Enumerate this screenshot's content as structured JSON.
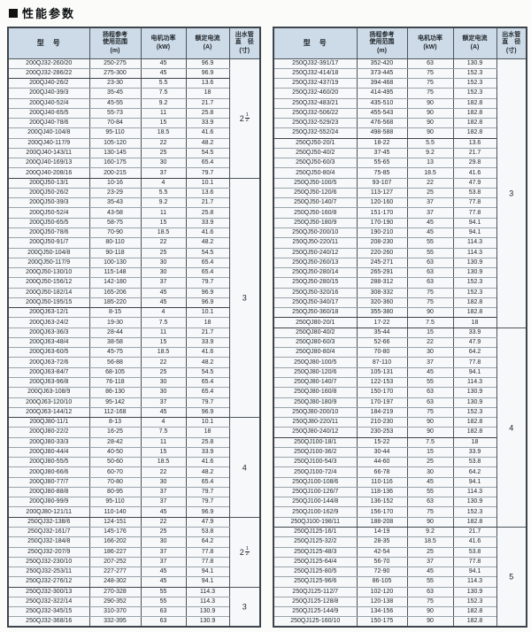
{
  "page": {
    "bullet": "■",
    "title": "性能参数"
  },
  "columns": {
    "model": "型　号",
    "head_l1": "扬程参考",
    "head_l2": "使用范围",
    "head_l3": "(m)",
    "power_l1": "电机功率",
    "power_l2": "(kW)",
    "current_l1": "额定电流",
    "current_l2": "(A)",
    "outlet_l1": "出水管",
    "outlet_l2": "直　径",
    "outlet_l3": "(寸)"
  },
  "left_table": {
    "rows": [
      [
        "200QJ32-260/20",
        "250-275",
        "45",
        "96.9"
      ],
      [
        "200QJ32-286/22",
        "275-300",
        "45",
        "96.9"
      ],
      [
        "200QJ40-26/2",
        "23-30",
        "5.5",
        "13.6"
      ],
      [
        "200QJ40-39/3",
        "35-45",
        "7.5",
        "18"
      ],
      [
        "200QJ40-52/4",
        "45-55",
        "9.2",
        "21.7"
      ],
      [
        "200QJ40-65/5",
        "55-73",
        "11",
        "25.8"
      ],
      [
        "200QJ40-78/6",
        "70-84",
        "15",
        "33.9"
      ],
      [
        "200QJ40-104/8",
        "95-110",
        "18.5",
        "41.6"
      ],
      [
        "200QJ40-117/9",
        "105-120",
        "22",
        "48.2"
      ],
      [
        "200QJ40-143/11",
        "130-145",
        "25",
        "54.5"
      ],
      [
        "200QJ40-169/13",
        "160-175",
        "30",
        "65.4"
      ],
      [
        "200QJ40-208/16",
        "200-215",
        "37",
        "79.7"
      ],
      [
        "200QJ50-13/1",
        "10-16",
        "4",
        "10.1"
      ],
      [
        "200QJ50-26/2",
        "23-29",
        "5.5",
        "13.6"
      ],
      [
        "200QJ50-39/3",
        "35-43",
        "9.2",
        "21.7"
      ],
      [
        "200QJ50-52/4",
        "43-58",
        "11",
        "25.8"
      ],
      [
        "200QJ50-65/5",
        "58-75",
        "15",
        "33.9"
      ],
      [
        "200QJ50-78/6",
        "70-90",
        "18.5",
        "41.6"
      ],
      [
        "200QJ50-91/7",
        "80-110",
        "22",
        "48.2"
      ],
      [
        "200QJ50-104/8",
        "90-118",
        "25",
        "54.5"
      ],
      [
        "200QJ50-117/9",
        "100-130",
        "30",
        "65.4"
      ],
      [
        "200QJ50-130/10",
        "115-148",
        "30",
        "65.4"
      ],
      [
        "200QJ50-156/12",
        "142-180",
        "37",
        "79.7"
      ],
      [
        "200QJ50-182/14",
        "165-206",
        "45",
        "96.9"
      ],
      [
        "200QJ50-195/15",
        "185-220",
        "45",
        "96.9"
      ],
      [
        "200QJ63-12/1",
        "8-15",
        "4",
        "10.1"
      ],
      [
        "200QJ63-24/2",
        "19-30",
        "7.5",
        "18"
      ],
      [
        "200QJ63-36/3",
        "28-44",
        "11",
        "21.7"
      ],
      [
        "200QJ63-48/4",
        "38-58",
        "15",
        "33.9"
      ],
      [
        "200QJ63-60/5",
        "45-75",
        "18.5",
        "41.6"
      ],
      [
        "200QJ63-72/6",
        "56-88",
        "22",
        "48.2"
      ],
      [
        "200QJ63-84/7",
        "68-105",
        "25",
        "54.5"
      ],
      [
        "200QJ63-96/8",
        "76-118",
        "30",
        "65.4"
      ],
      [
        "200QJ63-108/9",
        "86-130",
        "30",
        "65.4"
      ],
      [
        "200QJ63-120/10",
        "95-142",
        "37",
        "79.7"
      ],
      [
        "200QJ63-144/12",
        "112-168",
        "45",
        "96.9"
      ],
      [
        "200QJ80-11/1",
        "8-13",
        "4",
        "10.1"
      ],
      [
        "200QJ80-22/2",
        "16-25",
        "7.5",
        "18"
      ],
      [
        "200QJ80-33/3",
        "28-42",
        "11",
        "25.8"
      ],
      [
        "200QJ80-44/4",
        "40-50",
        "15",
        "33.9"
      ],
      [
        "200QJ80-55/5",
        "50-60",
        "18.5",
        "41.6"
      ],
      [
        "200QJ80-66/6",
        "60-70",
        "22",
        "48.2"
      ],
      [
        "200QJ80-77/7",
        "70-80",
        "30",
        "65.4"
      ],
      [
        "200QJ80-88/8",
        "80-95",
        "37",
        "79.7"
      ],
      [
        "200QJ80-99/9",
        "95-110",
        "37",
        "79.7"
      ],
      [
        "200QJ80-121/11",
        "110-140",
        "45",
        "96.9"
      ],
      [
        "250QJ32-138/6",
        "124-151",
        "22",
        "47.9"
      ],
      [
        "250QJ32-161/7",
        "145-176",
        "25",
        "53.8"
      ],
      [
        "250QJ32-184/8",
        "166-202",
        "30",
        "64.2"
      ],
      [
        "250QJ32-207/9",
        "186-227",
        "37",
        "77.8"
      ],
      [
        "250QJ32-230/10",
        "207-252",
        "37",
        "77.8"
      ],
      [
        "250QJ32-253/11",
        "227-277",
        "45",
        "94.1"
      ],
      [
        "250QJ32-276/12",
        "248-302",
        "45",
        "94.1"
      ],
      [
        "250QJ32-300/13",
        "270-328",
        "55",
        "114.3"
      ],
      [
        "250QJ32-322/14",
        "290-352",
        "55",
        "114.3"
      ],
      [
        "250QJ32-345/15",
        "310-370",
        "63",
        "130.9"
      ],
      [
        "250QJ32-368/16",
        "332-395",
        "63",
        "130.9"
      ]
    ],
    "diameter_groups": [
      {
        "rows": 12,
        "value": "2",
        "fraction": {
          "num": "1",
          "den": "2"
        }
      },
      {
        "rows": 24,
        "value": "3"
      },
      {
        "rows": 10,
        "value": "4"
      },
      {
        "rows": 7,
        "value": "2",
        "fraction": {
          "num": "1",
          "den": "2"
        }
      },
      {
        "rows": 4,
        "value": "3"
      }
    ],
    "thick_after": [
      1,
      11,
      24,
      35,
      45,
      52
    ]
  },
  "right_table": {
    "rows": [
      [
        "250QJ32-391/17",
        "352-420",
        "63",
        "130.9"
      ],
      [
        "250QJ32-414/18",
        "373-445",
        "75",
        "152.3"
      ],
      [
        "250QJ32-437/19",
        "394-468",
        "75",
        "152.3"
      ],
      [
        "250QJ32-460/20",
        "414-495",
        "75",
        "152.3"
      ],
      [
        "250QJ32-483/21",
        "435-510",
        "90",
        "182.8"
      ],
      [
        "250QJ32-506/22",
        "455-543",
        "90",
        "182.8"
      ],
      [
        "250QJ32-529/23",
        "476-568",
        "90",
        "182.8"
      ],
      [
        "250QJ32-552/24",
        "498-588",
        "90",
        "182.8"
      ],
      [
        "250QJ50-20/1",
        "18-22",
        "5.5",
        "13.6"
      ],
      [
        "250QJ50-40/2",
        "37-45",
        "9.2",
        "21.7"
      ],
      [
        "250QJ50-60/3",
        "55-65",
        "13",
        "29.8"
      ],
      [
        "250QJ50-80/4",
        "75-85",
        "18.5",
        "41.6"
      ],
      [
        "250QJ50-100/5",
        "93-107",
        "22",
        "47.9"
      ],
      [
        "250QJ50-120/6",
        "113-127",
        "25",
        "53.8"
      ],
      [
        "250QJ50-140/7",
        "120-160",
        "37",
        "77.8"
      ],
      [
        "250QJ50-160/8",
        "151-170",
        "37",
        "77.8"
      ],
      [
        "250QJ50-180/9",
        "170-190",
        "45",
        "94.1"
      ],
      [
        "250QJ50-200/10",
        "190-210",
        "45",
        "94.1"
      ],
      [
        "250QJ50-220/11",
        "208-230",
        "55",
        "114.3"
      ],
      [
        "250QJ50-240/12",
        "220-260",
        "55",
        "114.3"
      ],
      [
        "250QJ50-260/13",
        "245-271",
        "63",
        "130.9"
      ],
      [
        "250QJ50-280/14",
        "265-291",
        "63",
        "130.9"
      ],
      [
        "250QJ50-280/15",
        "288-312",
        "63",
        "152.3"
      ],
      [
        "250QJ50-320/16",
        "308-332",
        "75",
        "152.3"
      ],
      [
        "250QJ50-340/17",
        "320-360",
        "75",
        "182.8"
      ],
      [
        "250QJ50-360/18",
        "355-380",
        "90",
        "182.8"
      ],
      [
        "250QJ80-20/1",
        "17-22",
        "7.5",
        "18"
      ],
      [
        "250QJ80-40/2",
        "35-44",
        "15",
        "33.9"
      ],
      [
        "250QJ80-60/3",
        "52-66",
        "22",
        "47.9"
      ],
      [
        "250QJ80-80/4",
        "70-80",
        "30",
        "64.2"
      ],
      [
        "250QJ80-100/5",
        "87-110",
        "37",
        "77.8"
      ],
      [
        "250QJ80-120/6",
        "105-131",
        "45",
        "94.1"
      ],
      [
        "250QJ80-140/7",
        "122-153",
        "55",
        "114.3"
      ],
      [
        "250QJ80-160/8",
        "150-170",
        "63",
        "130.9"
      ],
      [
        "250QJ80-180/9",
        "170-197",
        "63",
        "130.9"
      ],
      [
        "250QJ80-200/10",
        "184-219",
        "75",
        "152.3"
      ],
      [
        "250QJ80-220/11",
        "210-230",
        "90",
        "182.8"
      ],
      [
        "250QJ80-240/12",
        "230-253",
        "90",
        "182.8"
      ],
      [
        "250QJ100-18/1",
        "15-22",
        "7.5",
        "18"
      ],
      [
        "250QJ100-36/2",
        "30-44",
        "15",
        "33.9"
      ],
      [
        "250QJ100-54/3",
        "44-60",
        "25",
        "53.8"
      ],
      [
        "250QJ100-72/4",
        "66-78",
        "30",
        "64.2"
      ],
      [
        "250QJ100-108/6",
        "110-116",
        "45",
        "94.1"
      ],
      [
        "250QJ100-126/7",
        "118-136",
        "55",
        "114.3"
      ],
      [
        "250QJ100-144/8",
        "136-152",
        "63",
        "130.9"
      ],
      [
        "250QJ100-162/9",
        "156-170",
        "75",
        "152.3"
      ],
      [
        "250QJ100-198/11",
        "188-208",
        "90",
        "182.8"
      ],
      [
        "250QJ125-16/1",
        "14-19",
        "9.2",
        "21.7"
      ],
      [
        "250QJ125-32/2",
        "28-35",
        "18.5",
        "41.6"
      ],
      [
        "250QJ125-48/3",
        "42-54",
        "25",
        "53.8"
      ],
      [
        "250QJ125-64/4",
        "56-70",
        "37",
        "77.8"
      ],
      [
        "250QJ125-80/5",
        "72-90",
        "45",
        "94.1"
      ],
      [
        "250QJ125-96/6",
        "86-105",
        "55",
        "114.3"
      ],
      [
        "250QJ125-112/7",
        "102-120",
        "63",
        "130.9"
      ],
      [
        "250QJ125-128/8",
        "120-138",
        "75",
        "152.3"
      ],
      [
        "250QJ125-144/9",
        "134-156",
        "90",
        "182.8"
      ],
      [
        "250QJ125-160/10",
        "150-175",
        "90",
        "182.8"
      ]
    ],
    "diameter_groups": [
      {
        "rows": 27,
        "value": "3"
      },
      {
        "rows": 20,
        "value": "4"
      },
      {
        "rows": 10,
        "value": "5"
      }
    ],
    "thick_after": [
      7,
      25,
      26,
      37,
      46
    ]
  },
  "colors": {
    "header_bg": "#cddbe8",
    "body_bg": "#f6f8f9",
    "border_dark": "#3d444b",
    "border_light": "#9aa4ac"
  }
}
